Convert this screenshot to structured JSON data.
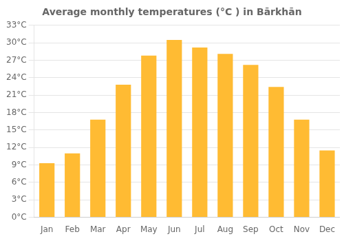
{
  "chart_data": {
    "type": "bar",
    "title": "Average monthly temperatures (°C ) in Bārkhān",
    "categories": [
      "Jan",
      "Feb",
      "Mar",
      "Apr",
      "May",
      "Jun",
      "Jul",
      "Aug",
      "Sep",
      "Oct",
      "Nov",
      "Dec"
    ],
    "values": [
      9.3,
      11.0,
      16.8,
      22.8,
      27.8,
      30.5,
      29.2,
      28.1,
      26.2,
      22.4,
      16.8,
      11.5
    ],
    "color": "#FFBB33",
    "ylim": [
      0,
      33
    ],
    "yticks": [
      {
        "value": 0,
        "label": "0°C"
      },
      {
        "value": 3,
        "label": "3°C"
      },
      {
        "value": 6,
        "label": "6°C"
      },
      {
        "value": 9,
        "label": "9°C"
      },
      {
        "value": 12,
        "label": "12°C"
      },
      {
        "value": 15,
        "label": "15°C"
      },
      {
        "value": 18,
        "label": "18°C"
      },
      {
        "value": 21,
        "label": "21°C"
      },
      {
        "value": 24,
        "label": "24°C"
      },
      {
        "value": 27,
        "label": "27°C"
      },
      {
        "value": 30,
        "label": "30°C"
      },
      {
        "value": 33,
        "label": "33°C"
      }
    ],
    "grid": true
  }
}
